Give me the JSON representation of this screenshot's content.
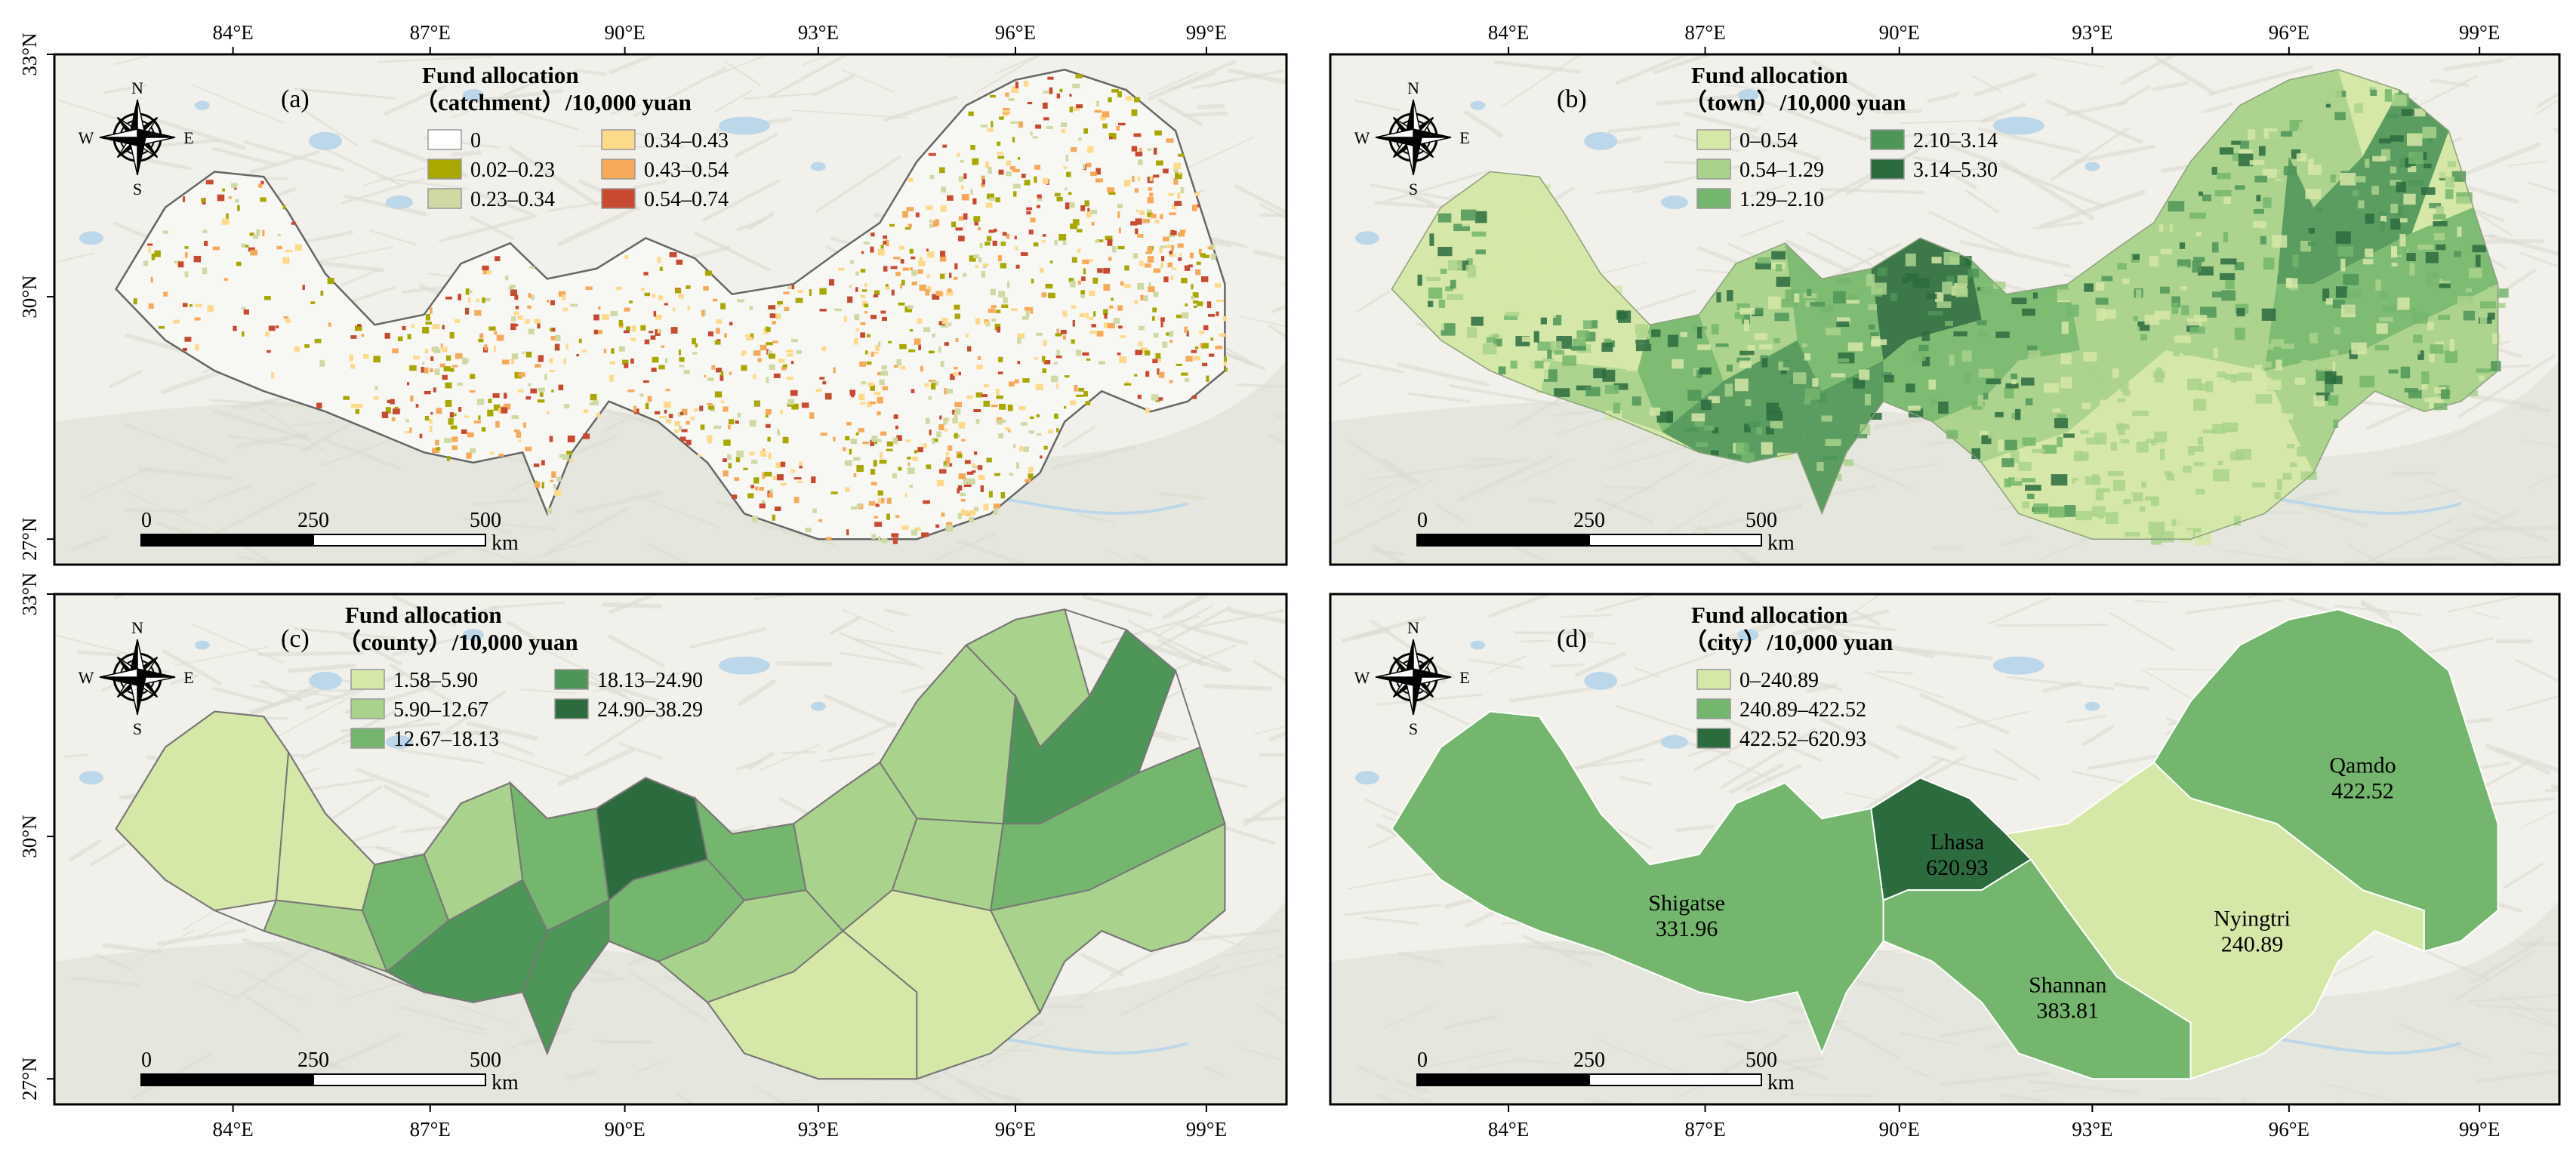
{
  "panels": [
    {
      "id": "a",
      "label": "(a)",
      "legend_title_1": "Fund allocation",
      "legend_title_2": "（catchment）/10,000 yuan",
      "legend_columns": 2,
      "legend": [
        {
          "label": "0",
          "color": "#ffffff"
        },
        {
          "label": "0.02–0.23",
          "color": "#a9a800"
        },
        {
          "label": "0.23–0.34",
          "color": "#cfd9a3"
        },
        {
          "label": "0.34–0.43",
          "color": "#fdd98a"
        },
        {
          "label": "0.43–0.54",
          "color": "#f7a95a"
        },
        {
          "label": "0.54–0.74",
          "color": "#c84b31"
        }
      ],
      "top_ticks": [
        "84°E",
        "87°E",
        "90°E",
        "93°E",
        "96°E",
        "99°E"
      ],
      "left_ticks": [
        "33°N",
        "30°N",
        "27°N"
      ],
      "region_labels": []
    },
    {
      "id": "b",
      "label": "(b)",
      "legend_title_1": "Fund allocation",
      "legend_title_2": "（town）/10,000 yuan",
      "legend_columns": 2,
      "legend": [
        {
          "label": "0–0.54",
          "color": "#d6e8a8"
        },
        {
          "label": "0.54–1.29",
          "color": "#a9d28c"
        },
        {
          "label": "1.29–2.10",
          "color": "#74b66d"
        },
        {
          "label": "2.10–3.14",
          "color": "#4e9558"
        },
        {
          "label": "3.14–5.30",
          "color": "#2b6b3e"
        }
      ],
      "top_ticks": [
        "84°E",
        "87°E",
        "90°E",
        "93°E",
        "96°E",
        "99°E"
      ],
      "left_ticks": [],
      "region_labels": []
    },
    {
      "id": "c",
      "label": "(c)",
      "legend_title_1": "Fund allocation",
      "legend_title_2": "（county）/10,000 yuan",
      "legend_columns": 2,
      "legend": [
        {
          "label": "1.58–5.90",
          "color": "#d6e8a8"
        },
        {
          "label": "5.90–12.67",
          "color": "#a9d28c"
        },
        {
          "label": "12.67–18.13",
          "color": "#74b66d"
        },
        {
          "label": "18.13–24.90",
          "color": "#4e9558"
        },
        {
          "label": "24.90–38.29",
          "color": "#2b6b3e"
        }
      ],
      "bottom_ticks": [
        "84°E",
        "87°E",
        "90°E",
        "93°E",
        "96°E",
        "99°E"
      ],
      "left_ticks": [
        "33°N",
        "30°N",
        "27°N"
      ],
      "region_labels": []
    },
    {
      "id": "d",
      "label": "(d)",
      "legend_title_1": "Fund allocation",
      "legend_title_2": "（city）/10,000 yuan",
      "legend_columns": 1,
      "legend": [
        {
          "label": "0–240.89",
          "color": "#d6e8a8"
        },
        {
          "label": "240.89–422.52",
          "color": "#74b66d"
        },
        {
          "label": "422.52–620.93",
          "color": "#2b6b3e"
        }
      ],
      "bottom_ticks": [
        "84°E",
        "87°E",
        "90°E",
        "93°E",
        "96°E",
        "99°E"
      ],
      "left_ticks": [],
      "region_labels": [
        {
          "name": "Shigatse",
          "value": "331.96"
        },
        {
          "name": "Lhasa",
          "value": "620.93"
        },
        {
          "name": "Shannan",
          "value": "383.81"
        },
        {
          "name": "Nyingtri",
          "value": "240.89"
        },
        {
          "name": "Qamdo",
          "value": "422.52"
        }
      ]
    }
  ],
  "scale_bar": {
    "ticks": [
      "0",
      "250",
      "500"
    ],
    "unit": "km"
  },
  "compass": {
    "n": "N",
    "s": "S",
    "e": "E",
    "w": "W"
  },
  "colors": {
    "basemap": "#f1f0ea",
    "terrain": "#dcdcd2",
    "water": "#bcd7ea",
    "region_outline": "#666666"
  }
}
